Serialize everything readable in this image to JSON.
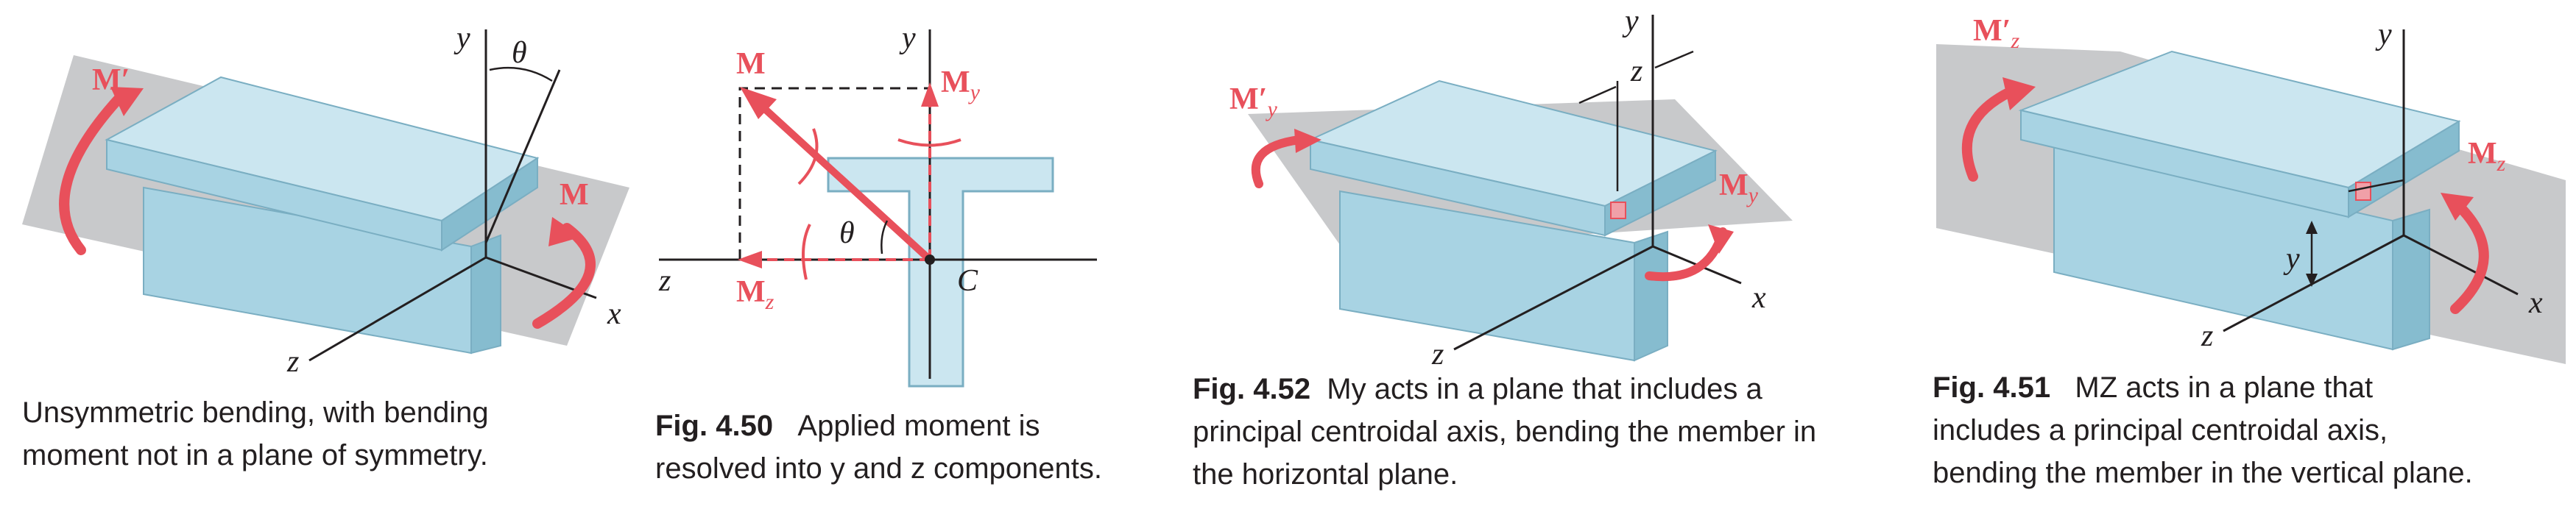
{
  "figures": [
    {
      "id": "panel-1",
      "labels": {
        "y": "y",
        "theta": "θ",
        "x": "x",
        "z": "z",
        "m_prime": "M′",
        "m": "M"
      },
      "caption": {
        "number": "",
        "lines": [
          "Unsymmetric bending, with bending",
          "moment not in a plane of symmetry."
        ]
      }
    },
    {
      "id": "fig-4-50",
      "labels": {
        "y": "y",
        "z": "z",
        "m": "M",
        "my_main": "M",
        "my_sub": "y",
        "mz_main": "M",
        "mz_sub": "z",
        "theta": "θ",
        "c": "C"
      },
      "caption": {
        "number": "Fig. 4.50",
        "lines": [
          "Applied moment is",
          "resolved into y and z components."
        ]
      }
    },
    {
      "id": "fig-4-52",
      "labels": {
        "y": "y",
        "z_top": "z",
        "x": "x",
        "z": "z",
        "my_prime_main": "M′",
        "my_prime_sub": "y",
        "my_main": "M",
        "my_sub": "y"
      },
      "caption": {
        "number": "Fig. 4.52",
        "lines": [
          "My acts in a plane that includes a",
          "principal centroidal axis, bending the member in",
          "the horizontal plane."
        ]
      }
    },
    {
      "id": "fig-4-51",
      "labels": {
        "y": "y",
        "y_dim": "y",
        "x": "x",
        "z": "z",
        "mz_prime_main": "M′",
        "mz_prime_sub": "z",
        "mz_main": "M",
        "mz_sub": "z"
      },
      "caption": {
        "number": "Fig. 4.51",
        "lines": [
          "MZ acts in a plane that",
          "includes a principal centroidal axis,",
          "bending the member in the vertical plane."
        ]
      }
    }
  ],
  "colors": {
    "beam_top": "#cbe6f0",
    "beam_side": "#a8d3e3",
    "beam_dark": "#86bccf",
    "plane": "#c8c9cb",
    "moment": "#e8505b",
    "axis": "#231f20"
  }
}
